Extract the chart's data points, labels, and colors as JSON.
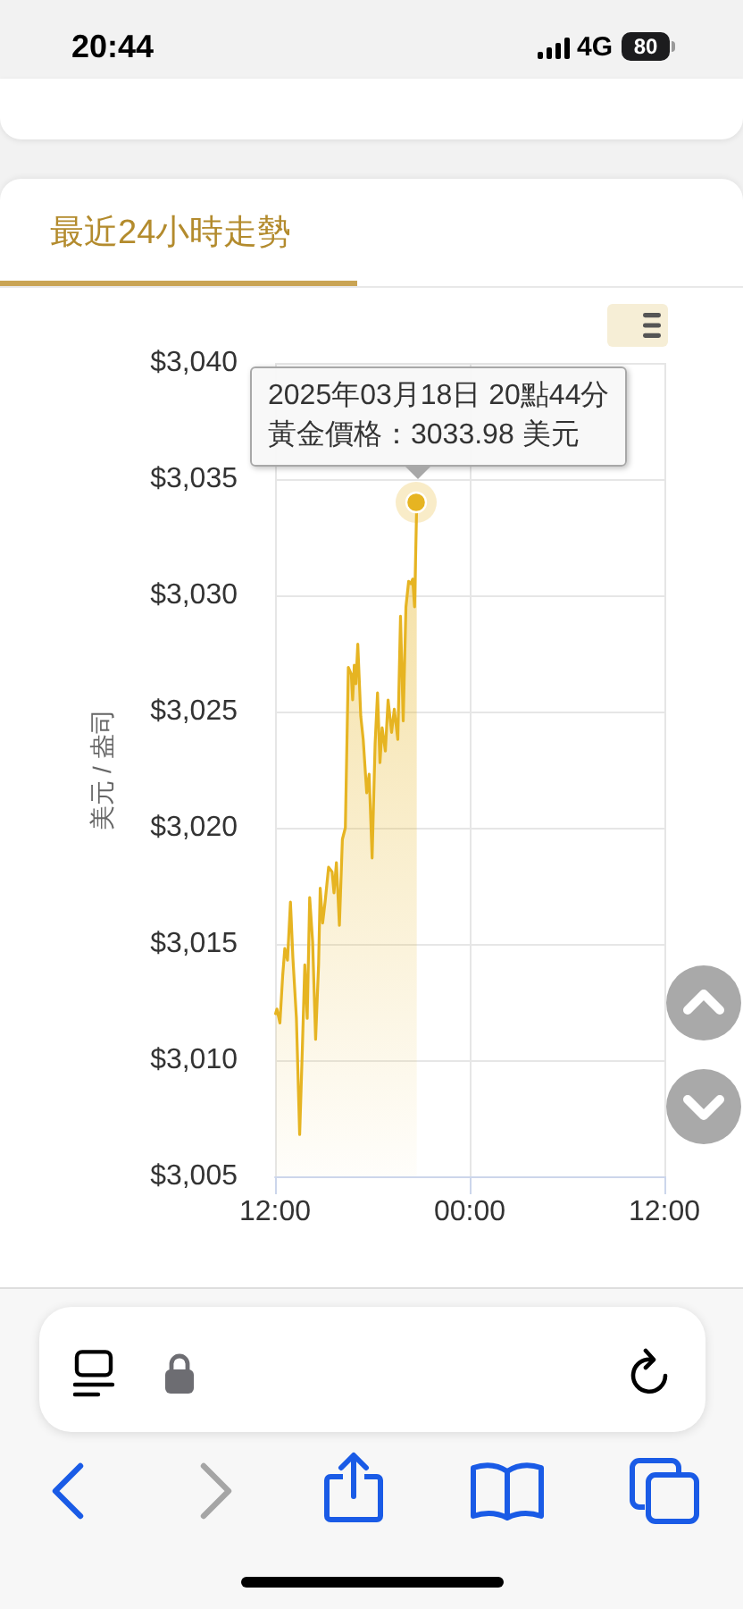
{
  "chart_data": {
    "type": "area",
    "title": "最近24小時走勢",
    "ylabel": "美元 / 盎司",
    "x": [
      "2025-03-18T12:02",
      "2025-03-18T12:07",
      "2025-03-18T12:18",
      "2025-03-18T12:28",
      "2025-03-18T12:36",
      "2025-03-18T12:46",
      "2025-03-18T12:57",
      "2025-03-18T13:06",
      "2025-03-18T13:19",
      "2025-03-18T13:31",
      "2025-03-18T13:41",
      "2025-03-18T13:50",
      "2025-03-18T13:59",
      "2025-03-18T14:08",
      "2025-03-18T14:19",
      "2025-03-18T14:30",
      "2025-03-18T14:41",
      "2025-03-18T14:47",
      "2025-03-18T14:56",
      "2025-03-18T15:05",
      "2025-03-18T15:18",
      "2025-03-18T15:31",
      "2025-03-18T15:38",
      "2025-03-18T15:47",
      "2025-03-18T15:58",
      "2025-03-18T16:09",
      "2025-03-18T16:20",
      "2025-03-18T16:31",
      "2025-03-18T16:42",
      "2025-03-18T16:47",
      "2025-03-18T16:53",
      "2025-03-18T16:59",
      "2025-03-18T17:06",
      "2025-03-18T17:17",
      "2025-03-18T17:26",
      "2025-03-18T17:39",
      "2025-03-18T17:48",
      "2025-03-18T17:59",
      "2025-03-18T18:10",
      "2025-03-18T18:19",
      "2025-03-18T18:28",
      "2025-03-18T18:36",
      "2025-03-18T18:48",
      "2025-03-18T18:58",
      "2025-03-18T19:11",
      "2025-03-18T19:21",
      "2025-03-18T19:34",
      "2025-03-18T19:44",
      "2025-03-18T19:54",
      "2025-03-18T20:04",
      "2025-03-18T20:14",
      "2025-03-18T20:22",
      "2025-03-18T20:29",
      "2025-03-18T20:36",
      "2025-03-18T20:44"
    ],
    "values": [
      3012.0,
      3012.2,
      3011.6,
      3013.6,
      3014.8,
      3014.3,
      3016.8,
      3014.4,
      3011.8,
      3006.8,
      3010.5,
      3014.1,
      3011.8,
      3017.0,
      3015.1,
      3010.9,
      3014.1,
      3017.4,
      3015.9,
      3016.8,
      3018.3,
      3018.1,
      3017.2,
      3018.5,
      3015.8,
      3019.5,
      3020.0,
      3026.9,
      3026.6,
      3025.5,
      3027.0,
      3026.2,
      3027.9,
      3024.8,
      3023.8,
      3021.5,
      3022.3,
      3018.7,
      3023.6,
      3025.8,
      3022.8,
      3024.3,
      3023.3,
      3025.5,
      3024.1,
      3025.1,
      3023.8,
      3029.1,
      3024.6,
      3029.5,
      3030.6,
      3030.5,
      3030.7,
      3029.5,
      3033.98
    ],
    "color": "#e6b422",
    "xlim": [
      "2025-03-18T12:00",
      "2025-03-19T12:00"
    ],
    "xticks": [
      {
        "value": "2025-03-18T12:00",
        "label": "12:00"
      },
      {
        "value": "2025-03-19T00:00",
        "label": "00:00"
      },
      {
        "value": "2025-03-19T12:00",
        "label": "12:00"
      }
    ],
    "ylim": [
      3005,
      3040
    ],
    "yticks": [
      {
        "value": 3005,
        "label": "$3,005"
      },
      {
        "value": 3010,
        "label": "$3,010"
      },
      {
        "value": 3015,
        "label": "$3,015"
      },
      {
        "value": 3020,
        "label": "$3,020"
      },
      {
        "value": 3025,
        "label": "$3,025"
      },
      {
        "value": 3030,
        "label": "$3,030"
      },
      {
        "value": 3035,
        "label": "$3,035"
      },
      {
        "value": 3040,
        "label": "$3,040"
      }
    ],
    "grid": true,
    "annotations": [
      "20:44",
      "4G",
      "80",
      "2025年03月18日 20點44分",
      {
        "text": "黃金價格：3033.98 美元",
        "x": "2025-03-18T20:44",
        "y": 3033.98
      }
    ]
  }
}
